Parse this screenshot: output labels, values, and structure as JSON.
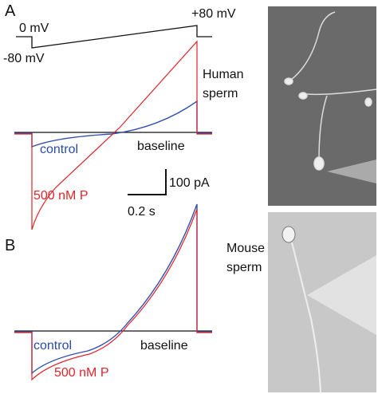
{
  "panels": [
    {
      "label": "A",
      "protocol": {
        "start": "0 mV",
        "end": "+80 mV",
        "hold": "-80 mV"
      },
      "cell": [
        "Human",
        "sperm"
      ],
      "control": "control",
      "baseline": "baseline",
      "drug": "500 nM P",
      "scale": {
        "current": "100 pA",
        "time": "0.2 s"
      }
    },
    {
      "label": "B",
      "cell": [
        "Mouse",
        "sperm"
      ],
      "control": "control",
      "baseline": "baseline",
      "drug": "500 nM P"
    }
  ]
}
